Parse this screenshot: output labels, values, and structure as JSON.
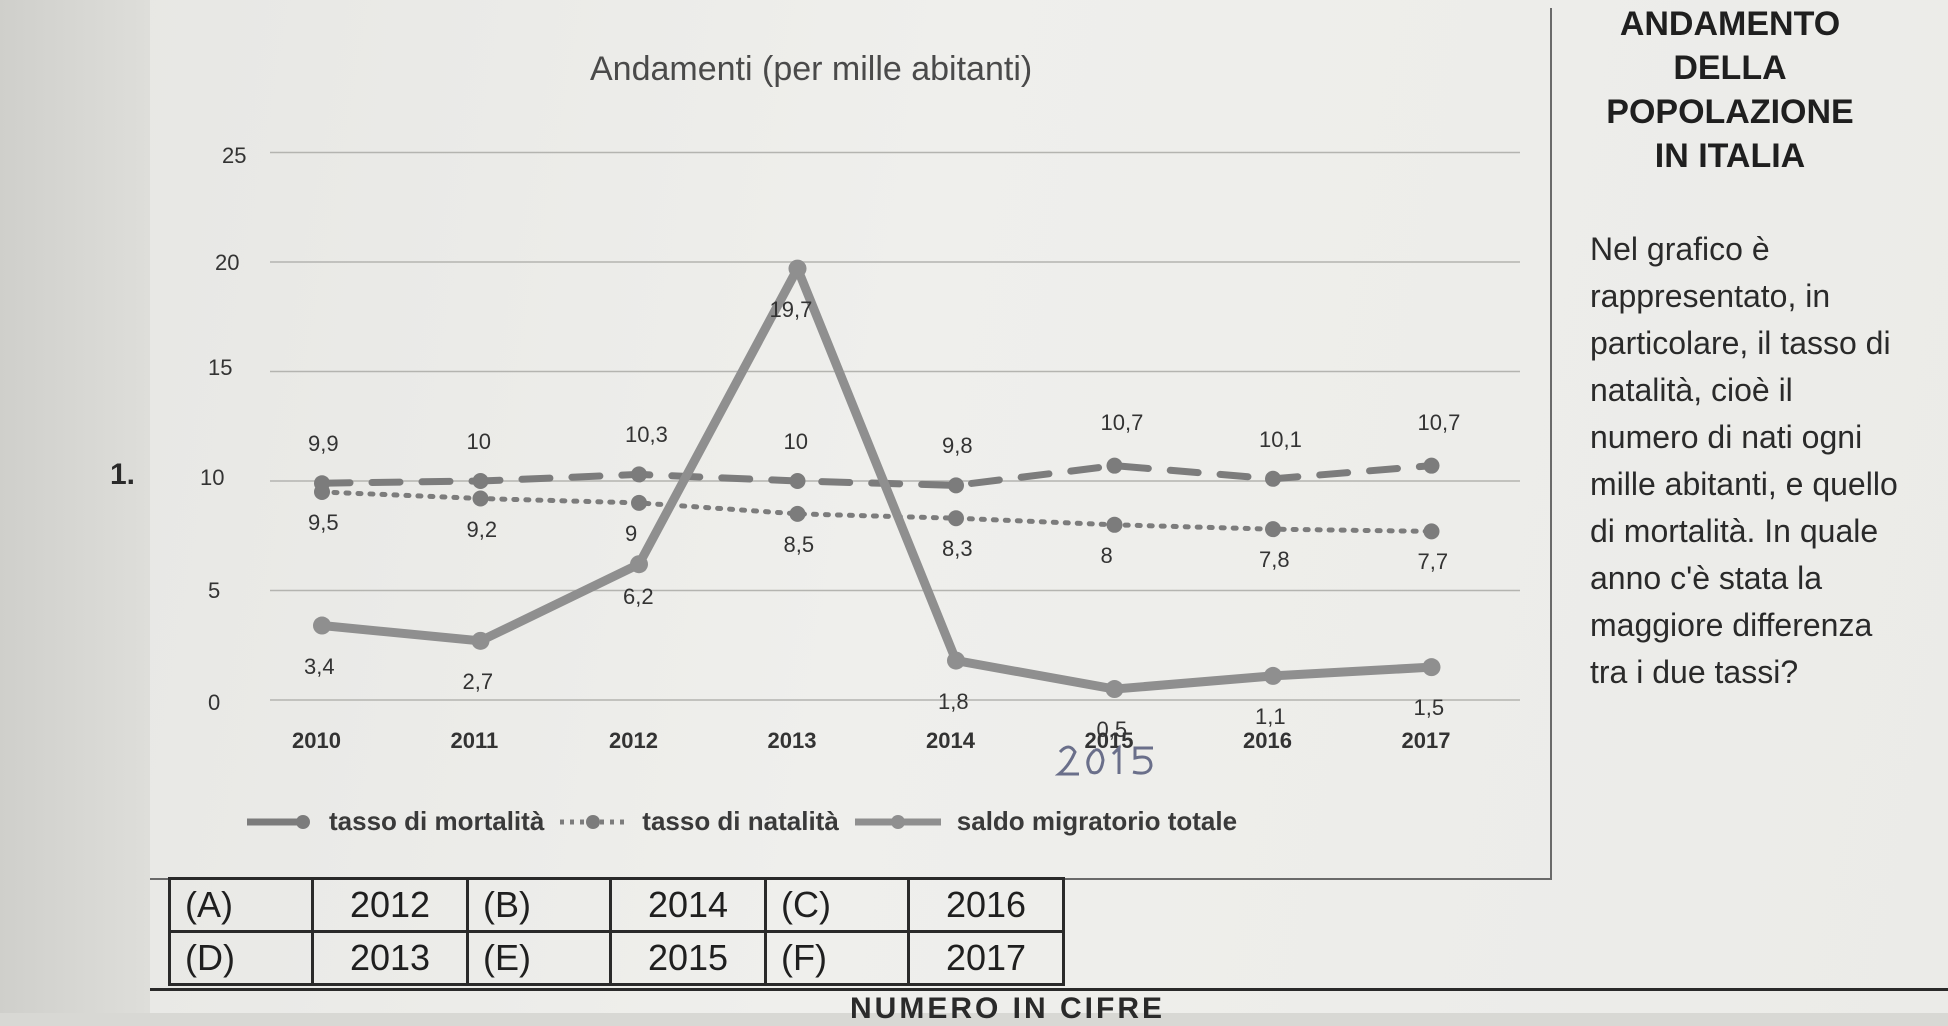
{
  "question_number": "1.",
  "right_panel": {
    "title_lines": [
      "ANDAMENTO",
      "DELLA",
      "POPOLAZIONE",
      "IN ITALIA"
    ],
    "question": "Nel grafico è rappresentato, in particolare, il tasso di natalità, cioè il numero di nati ogni mille abitanti, e quello di mortalità. In quale anno c'è stata la maggiore differenza tra i due tassi?"
  },
  "answers": [
    {
      "letter": "(A)",
      "year": "2012"
    },
    {
      "letter": "(B)",
      "year": "2014"
    },
    {
      "letter": "(C)",
      "year": "2016"
    },
    {
      "letter": "(D)",
      "year": "2013"
    },
    {
      "letter": "(E)",
      "year": "2015"
    },
    {
      "letter": "(F)",
      "year": "2017"
    }
  ],
  "handwritten_note": "2015",
  "footer": "NUMERO IN CIFRE",
  "chart_data": {
    "type": "line",
    "title": "Andamenti (per mille abitanti)",
    "x": [
      "2010",
      "2011",
      "2012",
      "2013",
      "2014",
      "2015",
      "2016",
      "2017"
    ],
    "y_ticks": [
      "0",
      "5",
      "10",
      "15",
      "20",
      "25"
    ],
    "ylim": [
      0,
      25
    ],
    "grid": true,
    "legend_position": "bottom",
    "series": [
      {
        "name": "tasso di mortalità",
        "style": "dashed",
        "color": "#7c7c7c",
        "values": [
          9.9,
          10,
          10.3,
          10,
          9.8,
          10.7,
          10.1,
          10.7
        ],
        "labels": [
          "9,9",
          "10",
          "10,3",
          "10",
          "9,8",
          "10,7",
          "10,1",
          "10,7"
        ]
      },
      {
        "name": "tasso di natalità",
        "style": "dotted",
        "color": "#7c7c7c",
        "values": [
          9.5,
          9.2,
          9,
          8.5,
          8.3,
          8,
          7.8,
          7.7
        ],
        "labels": [
          "9,5",
          "9,2",
          "9",
          "8,5",
          "8,3",
          "8",
          "7,8",
          "7,7"
        ]
      },
      {
        "name": "saldo migratorio totale",
        "style": "solid",
        "color": "#8f8f8f",
        "values": [
          3.4,
          2.7,
          6.2,
          19.7,
          1.8,
          0.5,
          1.1,
          1.5
        ],
        "labels": [
          "3,4",
          "2,7",
          "6,2",
          "19,7",
          "1,8",
          "0,5",
          "1,1",
          "1,5"
        ]
      }
    ]
  }
}
